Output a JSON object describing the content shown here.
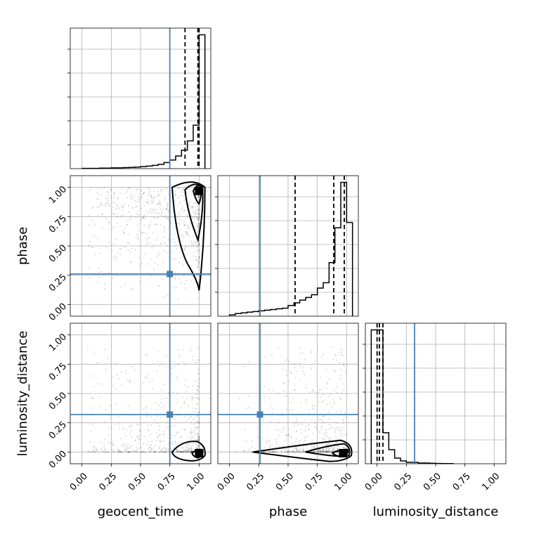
{
  "chart_data": {
    "type": "corner",
    "parameters": [
      "geocent_time",
      "phase",
      "luminosity_distance"
    ],
    "truths": {
      "geocent_time": 0.75,
      "phase": 0.26,
      "luminosity_distance": 0.32
    },
    "truth_color": "#4682b4",
    "axis_range": [
      -0.1,
      1.1
    ],
    "tick_labels": [
      "0.00",
      "0.25",
      "0.50",
      "0.75",
      "1.00"
    ],
    "tick_values": [
      0,
      0.25,
      0.5,
      0.75,
      1.0
    ],
    "grid": true,
    "histograms": [
      {
        "parameter": "geocent_time",
        "bin_edges": [
          0.0,
          0.05,
          0.1,
          0.15,
          0.2,
          0.25,
          0.3,
          0.35,
          0.4,
          0.45,
          0.5,
          0.55,
          0.6,
          0.65,
          0.7,
          0.75,
          0.8,
          0.85,
          0.9,
          0.95,
          1.0,
          1.05
        ],
        "counts": [
          0.1,
          0.1,
          0.1,
          0.2,
          0.2,
          0.3,
          0.3,
          0.4,
          0.5,
          0.6,
          0.8,
          1.0,
          1.3,
          1.7,
          2.4,
          3.4,
          5.0,
          7.3,
          11.0,
          17.2,
          53.0
        ],
        "quantiles": [
          0.88,
          0.99,
          1.0
        ]
      },
      {
        "parameter": "phase",
        "bin_edges": [
          0.0,
          0.05,
          0.1,
          0.15,
          0.2,
          0.25,
          0.3,
          0.35,
          0.4,
          0.45,
          0.5,
          0.55,
          0.6,
          0.65,
          0.7,
          0.75,
          0.8,
          0.85,
          0.9,
          0.95,
          1.0,
          1.05
        ],
        "counts": [
          1.0,
          2.0,
          2.5,
          3.0,
          3.5,
          4.0,
          4.5,
          5.0,
          5.5,
          6.0,
          8.0,
          10.0,
          12.0,
          14.0,
          16.0,
          21.0,
          25.0,
          40.0,
          66.0,
          100.0,
          70.0
        ],
        "quantiles": [
          0.56,
          0.89,
          0.98
        ]
      },
      {
        "parameter": "luminosity_distance",
        "bin_edges": [
          -0.05,
          0.0,
          0.05,
          0.1,
          0.15,
          0.2,
          0.25,
          0.3,
          0.35,
          0.4,
          0.45,
          0.5,
          0.55,
          0.6,
          0.65
        ],
        "counts": [
          95,
          95,
          22,
          10,
          4,
          2,
          1,
          1,
          0.5,
          0.5,
          0.3,
          0.2,
          0.1,
          0.1
        ],
        "quantiles": [
          0.0,
          0.02,
          0.05
        ]
      }
    ],
    "panels_2d": [
      {
        "x": "geocent_time",
        "y": "phase",
        "density_peak": [
          1.0,
          0.97
        ]
      },
      {
        "x": "geocent_time",
        "y": "luminosity_distance",
        "density_peak": [
          1.0,
          -0.01
        ]
      },
      {
        "x": "phase",
        "y": "luminosity_distance",
        "density_peak": [
          0.97,
          -0.01
        ]
      }
    ]
  }
}
